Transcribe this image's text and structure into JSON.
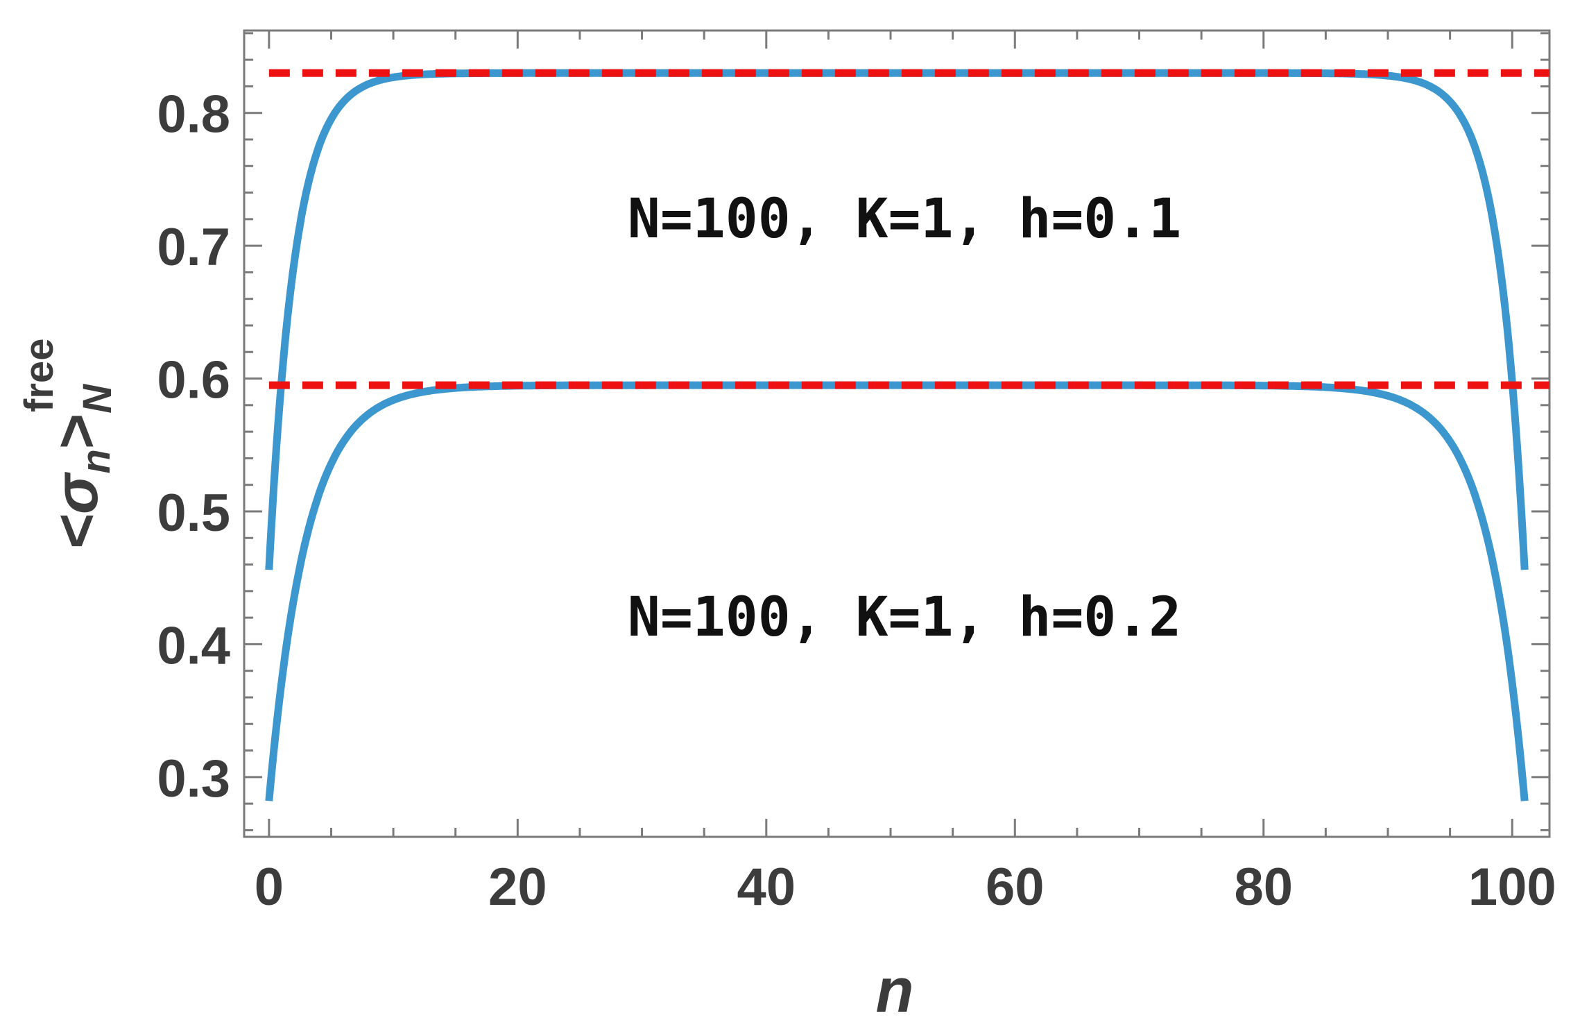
{
  "chart_data": {
    "type": "line",
    "xlabel": "n",
    "ylabel": {
      "base": "<σ",
      "sub_n": "n",
      "close": ">",
      "sub_N": "N",
      "sup": "free"
    },
    "xlim": [
      -2,
      103
    ],
    "ylim": [
      0.255,
      0.862
    ],
    "x_ticks": [
      0,
      20,
      40,
      60,
      80,
      100
    ],
    "x_tick_labels": [
      "0",
      "20",
      "40",
      "60",
      "80",
      "100"
    ],
    "y_ticks": [
      0.3,
      0.4,
      0.5,
      0.6,
      0.7,
      0.8
    ],
    "y_tick_labels": [
      "0.3",
      "0.4",
      "0.5",
      "0.6",
      "0.7",
      "0.8"
    ],
    "grid": false,
    "annotations": [
      {
        "text": "N=100, K=1, h=0.1",
        "x": 50,
        "y": 0.72
      },
      {
        "text": "N=100, K=1, h=0.2",
        "x": 50,
        "y": 0.42
      }
    ],
    "series": [
      {
        "style": "solid",
        "color": "#3d97cf",
        "bulk": 0.83,
        "edge": 0.456,
        "decay": 2.1,
        "x_range": [
          0,
          101
        ]
      },
      {
        "style": "solid",
        "color": "#3d97cf",
        "bulk": 0.595,
        "edge": 0.282,
        "decay": 3.0,
        "x_range": [
          0,
          101
        ]
      },
      {
        "style": "dashed",
        "color": "#ee1111",
        "y": 0.83,
        "x_range": [
          0,
          103
        ]
      },
      {
        "style": "dashed",
        "color": "#ee1111",
        "y": 0.595,
        "x_range": [
          0,
          103
        ]
      }
    ]
  }
}
